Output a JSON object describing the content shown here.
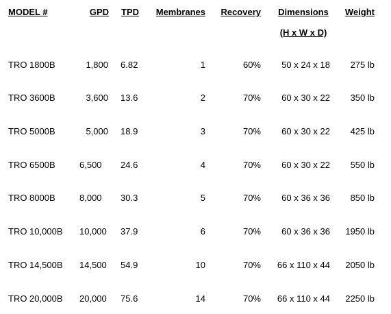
{
  "table": {
    "headers": {
      "model": "MODEL #",
      "gpd": "GPD",
      "tpd": "TPD",
      "membranes": "Membranes",
      "recovery": "Recovery",
      "dimensions": "Dimensions",
      "dimensions_sub": "(H x W x D)",
      "weight": "Weight"
    },
    "rows": [
      {
        "model": "TRO 1800B",
        "gpd": "1,800",
        "tpd": "6.82",
        "membranes": "1",
        "recovery": "60%",
        "dimensions": "50 x 24 x 18",
        "weight": "275 lb"
      },
      {
        "model": "TRO 3600B",
        "gpd": "3,600",
        "tpd": "13.6",
        "membranes": "2",
        "recovery": "70%",
        "dimensions": "60 x 30 x 22",
        "weight": "350 lb"
      },
      {
        "model": "TRO 5000B",
        "gpd": "5,000",
        "tpd": "18.9",
        "membranes": "3",
        "recovery": "70%",
        "dimensions": "60 x 30 x 22",
        "weight": "425 lb"
      },
      {
        "model": "TRO 6500B",
        "gpd": "6,500",
        "tpd": "24.6",
        "membranes": "4",
        "recovery": "70%",
        "dimensions": "60 x 30 x 22",
        "weight": "550 lb"
      },
      {
        "model": "TRO 8000B",
        "gpd": "8,000",
        "tpd": "30.3",
        "membranes": "5",
        "recovery": "70%",
        "dimensions": "60 x 36 x 36",
        "weight": "850 lb"
      },
      {
        "model": "TRO 10,000B",
        "gpd": "10,000",
        "tpd": "37.9",
        "membranes": "6",
        "recovery": "70%",
        "dimensions": "60 x 36 x 36",
        "weight": "1950 lb"
      },
      {
        "model": "TRO 14,500B",
        "gpd": "14,500",
        "tpd": "54.9",
        "membranes": "10",
        "recovery": "70%",
        "dimensions": "66 x 110 x 44",
        "weight": "2050 lb"
      },
      {
        "model": "TRO 20,000B",
        "gpd": "20,000",
        "tpd": "75.6",
        "membranes": "14",
        "recovery": "70%",
        "dimensions": "66 x 110 x 44",
        "weight": "2250 lb"
      }
    ]
  }
}
